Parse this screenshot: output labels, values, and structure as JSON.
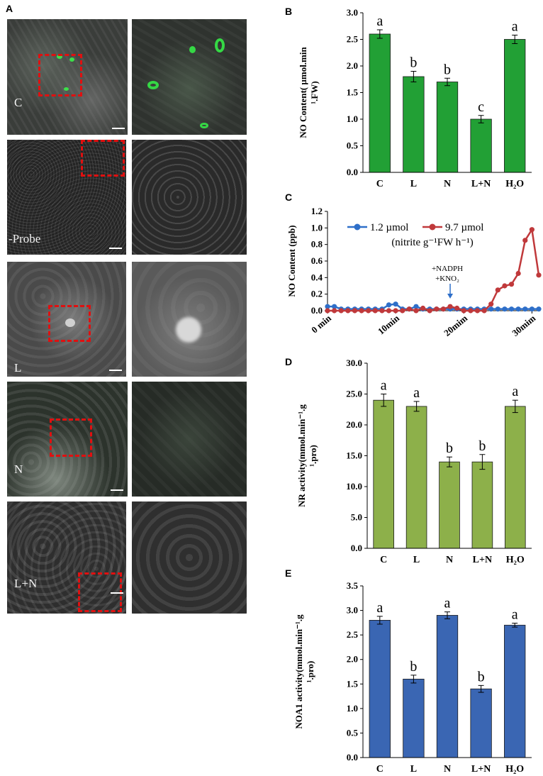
{
  "panels": {
    "A": "A",
    "B": "B",
    "C": "C",
    "D": "D",
    "E": "E"
  },
  "micrographs": [
    {
      "label": "C"
    },
    {
      "label": "-Probe"
    },
    {
      "label": "L"
    },
    {
      "label": "N"
    },
    {
      "label": "L+N"
    }
  ],
  "chart_data": [
    {
      "id": "B",
      "type": "bar",
      "ylabel": "NO Content( µmol.min⁻¹.FW)",
      "ylabel_line1": "NO Content( µmol.min",
      "ylabel_line2": "¹.FW)",
      "categories": [
        "C",
        "L",
        "N",
        "L+N",
        "H₂O"
      ],
      "values": [
        2.6,
        1.8,
        1.7,
        1.0,
        2.5
      ],
      "errors": [
        0.08,
        0.1,
        0.07,
        0.07,
        0.08
      ],
      "letters": [
        "a",
        "b",
        "b",
        "c",
        "a"
      ],
      "ylim": [
        0,
        3.0
      ],
      "yticks": [
        "0.0",
        "0.5",
        "1.0",
        "1.5",
        "2.0",
        "2.5",
        "3.0"
      ],
      "color": "#22a035"
    },
    {
      "id": "C",
      "type": "line",
      "ylabel": "NO Content (ppb)",
      "ylim": [
        0,
        1.2
      ],
      "yticks": [
        "0.0",
        "0.2",
        "0.4",
        "0.6",
        "0.8",
        "1.0",
        "1.2"
      ],
      "xlim": [
        0,
        31
      ],
      "xticks": [
        {
          "value": 0,
          "label": "0 min"
        },
        {
          "value": 10,
          "label": "10min"
        },
        {
          "value": 20,
          "label": "20mim"
        },
        {
          "value": 30,
          "label": "30mim"
        }
      ],
      "legend_note": "(nitrite g⁻¹FW h⁻¹)",
      "annotation": [
        "+NADPH",
        "+KNO₂"
      ],
      "annotation_x": 18,
      "series": [
        {
          "name": "1.2 µmol",
          "color": "#2e6fc9",
          "x": [
            0,
            1,
            2,
            3,
            4,
            5,
            6,
            7,
            8,
            9,
            10,
            11,
            12,
            13,
            14,
            15,
            16,
            17,
            18,
            19,
            20,
            21,
            22,
            23,
            24,
            25,
            26,
            27,
            28,
            29,
            30,
            31
          ],
          "y": [
            0.05,
            0.05,
            0.02,
            0.02,
            0.02,
            0.02,
            0.02,
            0.02,
            0.02,
            0.07,
            0.08,
            0.02,
            0.02,
            0.05,
            0.02,
            0.02,
            0.02,
            0.02,
            0.02,
            0.02,
            0.02,
            0.02,
            0.02,
            0.02,
            0.02,
            0.02,
            0.02,
            0.02,
            0.02,
            0.02,
            0.02,
            0.02
          ]
        },
        {
          "name": "9.7 µmol",
          "color": "#c0393b",
          "x": [
            0,
            1,
            2,
            3,
            4,
            5,
            6,
            7,
            8,
            9,
            10,
            11,
            12,
            13,
            14,
            15,
            16,
            17,
            18,
            19,
            20,
            21,
            22,
            23,
            24,
            25,
            26,
            27,
            28,
            29,
            30,
            31
          ],
          "y": [
            0.0,
            0.0,
            0.0,
            0.0,
            0.0,
            0.0,
            0.0,
            0.0,
            0.0,
            0.0,
            0.0,
            0.0,
            0.02,
            0.0,
            0.03,
            0.0,
            0.02,
            0.02,
            0.05,
            0.03,
            0.0,
            0.0,
            0.0,
            0.0,
            0.08,
            0.25,
            0.3,
            0.32,
            0.45,
            0.85,
            0.98,
            0.43
          ]
        }
      ]
    },
    {
      "id": "D",
      "type": "bar",
      "ylabel": "NR activity(mmol.min⁻¹.g⁻¹.pro)",
      "ylabel_line1": "NR activity(mmol.min⁻¹.g",
      "ylabel_line2": "¹.pro)",
      "categories": [
        "C",
        "L",
        "N",
        "L+N",
        "H₂O"
      ],
      "values": [
        24.0,
        23.0,
        14.0,
        14.0,
        23.0
      ],
      "errors": [
        1.0,
        0.8,
        0.8,
        1.2,
        1.0
      ],
      "letters": [
        "a",
        "a",
        "b",
        "b",
        "a"
      ],
      "ylim": [
        0,
        30
      ],
      "yticks": [
        "0.0",
        "5.0",
        "10.0",
        "15.0",
        "20.0",
        "25.0",
        "30.0"
      ],
      "color": "#8db04a"
    },
    {
      "id": "E",
      "type": "bar",
      "ylabel": "NOA1 activity(mmol.min⁻¹.g⁻¹.pro)",
      "ylabel_line1": "NOA1 activity(mmol.min⁻¹.g",
      "ylabel_line2": "¹.pro)",
      "categories": [
        "C",
        "L",
        "N",
        "L+N",
        "H₂O"
      ],
      "values": [
        2.8,
        1.6,
        2.9,
        1.4,
        2.7
      ],
      "errors": [
        0.08,
        0.08,
        0.07,
        0.07,
        0.04
      ],
      "letters": [
        "a",
        "b",
        "a",
        "b",
        "a"
      ],
      "ylim": [
        0,
        3.5
      ],
      "yticks": [
        "0.0",
        "0.5",
        "1.0",
        "1.5",
        "2.0",
        "2.5",
        "3.0",
        "3.5"
      ],
      "color": "#3a66b3"
    }
  ]
}
